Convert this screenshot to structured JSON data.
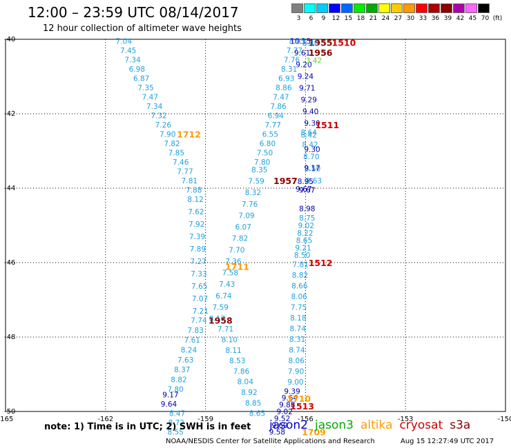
{
  "header": {
    "title": "12:00 – 23:59 UTC 08/14/2017",
    "subtitle": "12 hour collection of altimeter wave heights"
  },
  "colorbar": {
    "colors": [
      "#808080",
      "#00ffff",
      "#00ccff",
      "#0000ff",
      "#0066ff",
      "#00ee00",
      "#00aa00",
      "#ffff00",
      "#ffcc00",
      "#ff9900",
      "#ff0000",
      "#aa0000",
      "#880000",
      "#aa00aa",
      "#ff66ff",
      "#000000"
    ],
    "labels": [
      "3",
      "6",
      "9",
      "12",
      "15",
      "18",
      "21",
      "24",
      "27",
      "30",
      "33",
      "36",
      "39",
      "42",
      "45",
      "70",
      "(ft)"
    ]
  },
  "map": {
    "lon_ticks": [
      "-165",
      "-162",
      "-159",
      "-156",
      "-153",
      "-150"
    ],
    "lat_ticks": [
      "-40",
      "-42",
      "-44",
      "-46",
      "-48",
      "-50"
    ],
    "lon_range": [
      -165,
      -150
    ],
    "lat_range": [
      -50,
      -40
    ],
    "grid": true
  },
  "satellites": [
    {
      "name": "jason2",
      "color": "#0000cc"
    },
    {
      "name": "jason3",
      "color": "#00aa00"
    },
    {
      "name": "altika",
      "color": "#ff9900"
    },
    {
      "name": "cryosat",
      "color": "#cc0000"
    },
    {
      "name": "s3a",
      "color": "#880000"
    }
  ],
  "colors": {
    "light": "#1ea0dc",
    "dark": "#0000aa",
    "time_orange": "#ff9900",
    "time_red": "#cc0000",
    "time_darkred": "#880000",
    "green": "#66cc33"
  },
  "tracks": [
    {
      "name": "track-a",
      "color": "#1ea0dc",
      "lon_start": -161.45,
      "lon_end": -159.35,
      "lat_start": -40.05,
      "lat_end": -44.05,
      "values": [
        "7.04",
        "7.45",
        "7.34",
        "6.98",
        "6.87",
        "7.35",
        "7.47",
        "7.34",
        "7.32",
        "7.26",
        "7.90",
        "7.82",
        "7.85",
        "7.46",
        "7.77",
        "7.81",
        "7.88"
      ]
    },
    {
      "name": "track-b",
      "color": "#1ea0dc",
      "lon_start": -159.3,
      "lon_end": -159.15,
      "lat_start": -44.3,
      "lat_end": -47.3,
      "values": [
        "8.12",
        "7.62",
        "7.92",
        "7.39",
        "7.89",
        "7.27",
        "7.33",
        "7.65",
        "7.07",
        "7.21"
      ]
    },
    {
      "name": "track-c",
      "color": "#1ea0dc",
      "lon_start": -159.2,
      "lon_end": -159.9,
      "lat_start": -47.55,
      "lat_end": -49.4,
      "values": [
        "7.74",
        "7.83",
        "7.61",
        "8.24",
        "7.63",
        "8.37",
        "8.82",
        "7.80"
      ]
    },
    {
      "name": "track-d",
      "color": "#0000aa",
      "lon_start": -160.05,
      "lon_end": -160.1,
      "lat_start": -49.55,
      "lat_end": -49.8,
      "values": [
        "9.17",
        "9.64"
      ]
    },
    {
      "name": "track-e",
      "color": "#1ea0dc",
      "lon_start": -159.85,
      "lon_end": -159.9,
      "lat_start": -50.05,
      "lat_end": -50.55,
      "values": [
        "8.47",
        "8.72",
        "8.55"
      ]
    },
    {
      "name": "track-f",
      "color": "#1ea0dc",
      "lon_start": -157.38,
      "lon_end": -158.65,
      "lat_start": -43.5,
      "lat_end": -47.5,
      "values": [
        "8.35",
        "7.59",
        "8.32",
        "7.76",
        "7.09",
        "6.07",
        "7.82",
        "7.70",
        "7.36",
        "7.58",
        "7.43",
        "6.74",
        "7.59",
        "8.17"
      ]
    },
    {
      "name": "track-g",
      "color": "#1ea0dc",
      "lon_start": -158.4,
      "lon_end": -157.45,
      "lat_start": -47.78,
      "lat_end": -50.05,
      "values": [
        "7.71",
        "8.10",
        "8.11",
        "8.53",
        "7.86",
        "8.04",
        "8.92",
        "8.85",
        "8.65"
      ]
    },
    {
      "name": "track-h",
      "color": "#1ea0dc",
      "lon_start": -156.25,
      "lon_end": -157.3,
      "lat_start": -40.05,
      "lat_end": -43.3,
      "values": [
        "8.95",
        "7.77",
        "7.76",
        "8.31",
        "6.93",
        "8.86",
        "7.47",
        "7.86",
        "6.94",
        "7.77",
        "6.55",
        "6.80",
        "7.50",
        "7.80"
      ]
    },
    {
      "name": "track-i",
      "color": "#0000aa",
      "lon_start": -156.15,
      "lon_end": -155.8,
      "lat_start": -40.05,
      "lat_end": -42.25,
      "values": [
        "10.15",
        "9.61",
        "9.20",
        "9.24",
        "9.71",
        "9.29",
        "9.40",
        "9.30"
      ]
    },
    {
      "name": "track-j",
      "color": "#1ea0dc",
      "lon_start": -155.9,
      "lon_end": -155.75,
      "lat_start": -42.5,
      "lat_end": -43.8,
      "values": [
        "8.64",
        "8.42",
        "8.70",
        "8.50",
        "8.63"
      ]
    },
    {
      "name": "track-j2",
      "color": "#0000aa",
      "lon_start": -155.8,
      "lon_end": -155.8,
      "lat_start": -42.95,
      "lat_end": -43.45,
      "values": [
        "9.30",
        "9.17"
      ]
    },
    {
      "name": "track-k",
      "color": "#0000aa",
      "lon_start": -155.95,
      "lon_end": -155.95,
      "lat_start": -44.05,
      "lat_end": -44.55,
      "values": [
        "9.67",
        "8.98"
      ]
    },
    {
      "name": "track-l",
      "color": "#1ea0dc",
      "lon_start": -155.95,
      "lon_end": -156.1,
      "lat_start": -44.8,
      "lat_end": -45.8,
      "values": [
        "8.75",
        "9.02",
        "8.22",
        "8.65",
        "9.21",
        "8.50"
      ]
    },
    {
      "name": "track-m",
      "color": "#1ea0dc",
      "lon_start": -156.15,
      "lon_end": -156.3,
      "lat_start": -46.05,
      "lat_end": -49.2,
      "values": [
        "7.81",
        "8.82",
        "8.66",
        "8.06",
        "7.75",
        "8.18",
        "8.74",
        "8.31",
        "8.74",
        "8.06",
        "7.90",
        "9.00"
      ]
    },
    {
      "name": "track-n",
      "color": "#0000aa",
      "lon_start": -156.4,
      "lon_end": -156.85,
      "lat_start": -49.45,
      "lat_end": -50.55,
      "values": [
        "9.39",
        "9.64",
        "9.88",
        "9.02",
        "9.52",
        "9.69",
        "9.58"
      ]
    }
  ],
  "labels": [
    {
      "text": "1712",
      "lon": -159.5,
      "lat": -42.55,
      "color": "#ff9900",
      "bold": true
    },
    {
      "text": "1511",
      "lon": -155.35,
      "lat": -42.3,
      "color": "#cc0000",
      "bold": true
    },
    {
      "text": "1512",
      "lon": -155.55,
      "lat": -46.0,
      "color": "#cc0000",
      "bold": true
    },
    {
      "text": "1711",
      "lon": -158.05,
      "lat": -46.1,
      "color": "#ff9900",
      "bold": true
    },
    {
      "text": "1958",
      "lon": -158.55,
      "lat": -47.55,
      "color": "#880000",
      "bold": true
    },
    {
      "text": "1957",
      "lon": -156.6,
      "lat": -43.8,
      "color": "#880000",
      "bold": true
    },
    {
      "text": "1956",
      "lon": -155.55,
      "lat": -40.35,
      "color": "#880000",
      "bold": true
    },
    {
      "text": "1955",
      "lon": -155.55,
      "lat": -40.08,
      "color": "#880000",
      "bold": true
    },
    {
      "text": "1510",
      "lon": -154.85,
      "lat": -40.08,
      "color": "#cc0000",
      "bold": true
    },
    {
      "text": "8.48",
      "lon": -155.85,
      "lat": -40.08,
      "color": "#1ea0dc",
      "bold": false
    },
    {
      "text": "8.42",
      "lon": -155.9,
      "lat": -42.55,
      "color": "#1ea0dc",
      "bold": false
    },
    {
      "text": "8.95",
      "lon": -156.0,
      "lat": -43.8,
      "color": "#0000aa",
      "bold": false
    },
    {
      "text": "9.67",
      "lon": -156.05,
      "lat": -44.0,
      "color": "#0000aa",
      "bold": false
    },
    {
      "text": "3.42",
      "lon": -155.75,
      "lat": -40.55,
      "color": "#66cc33",
      "bold": false
    },
    {
      "text": "1710",
      "lon": -156.2,
      "lat": -49.65,
      "color": "#ff9900",
      "bold": true
    },
    {
      "text": "1513",
      "lon": -156.1,
      "lat": -49.85,
      "color": "#cc0000",
      "bold": true
    },
    {
      "text": "1709",
      "lon": -155.75,
      "lat": -50.55,
      "color": "#ff9900",
      "bold": true
    }
  ],
  "footer": {
    "note": "note: 1) Time is in UTC; 2) SWH is in feet",
    "credit": "NOAA/NESDIS Center for Satellite Applications and Research",
    "timestamp": "Aug 15 12:27:49 UTC 2017"
  }
}
